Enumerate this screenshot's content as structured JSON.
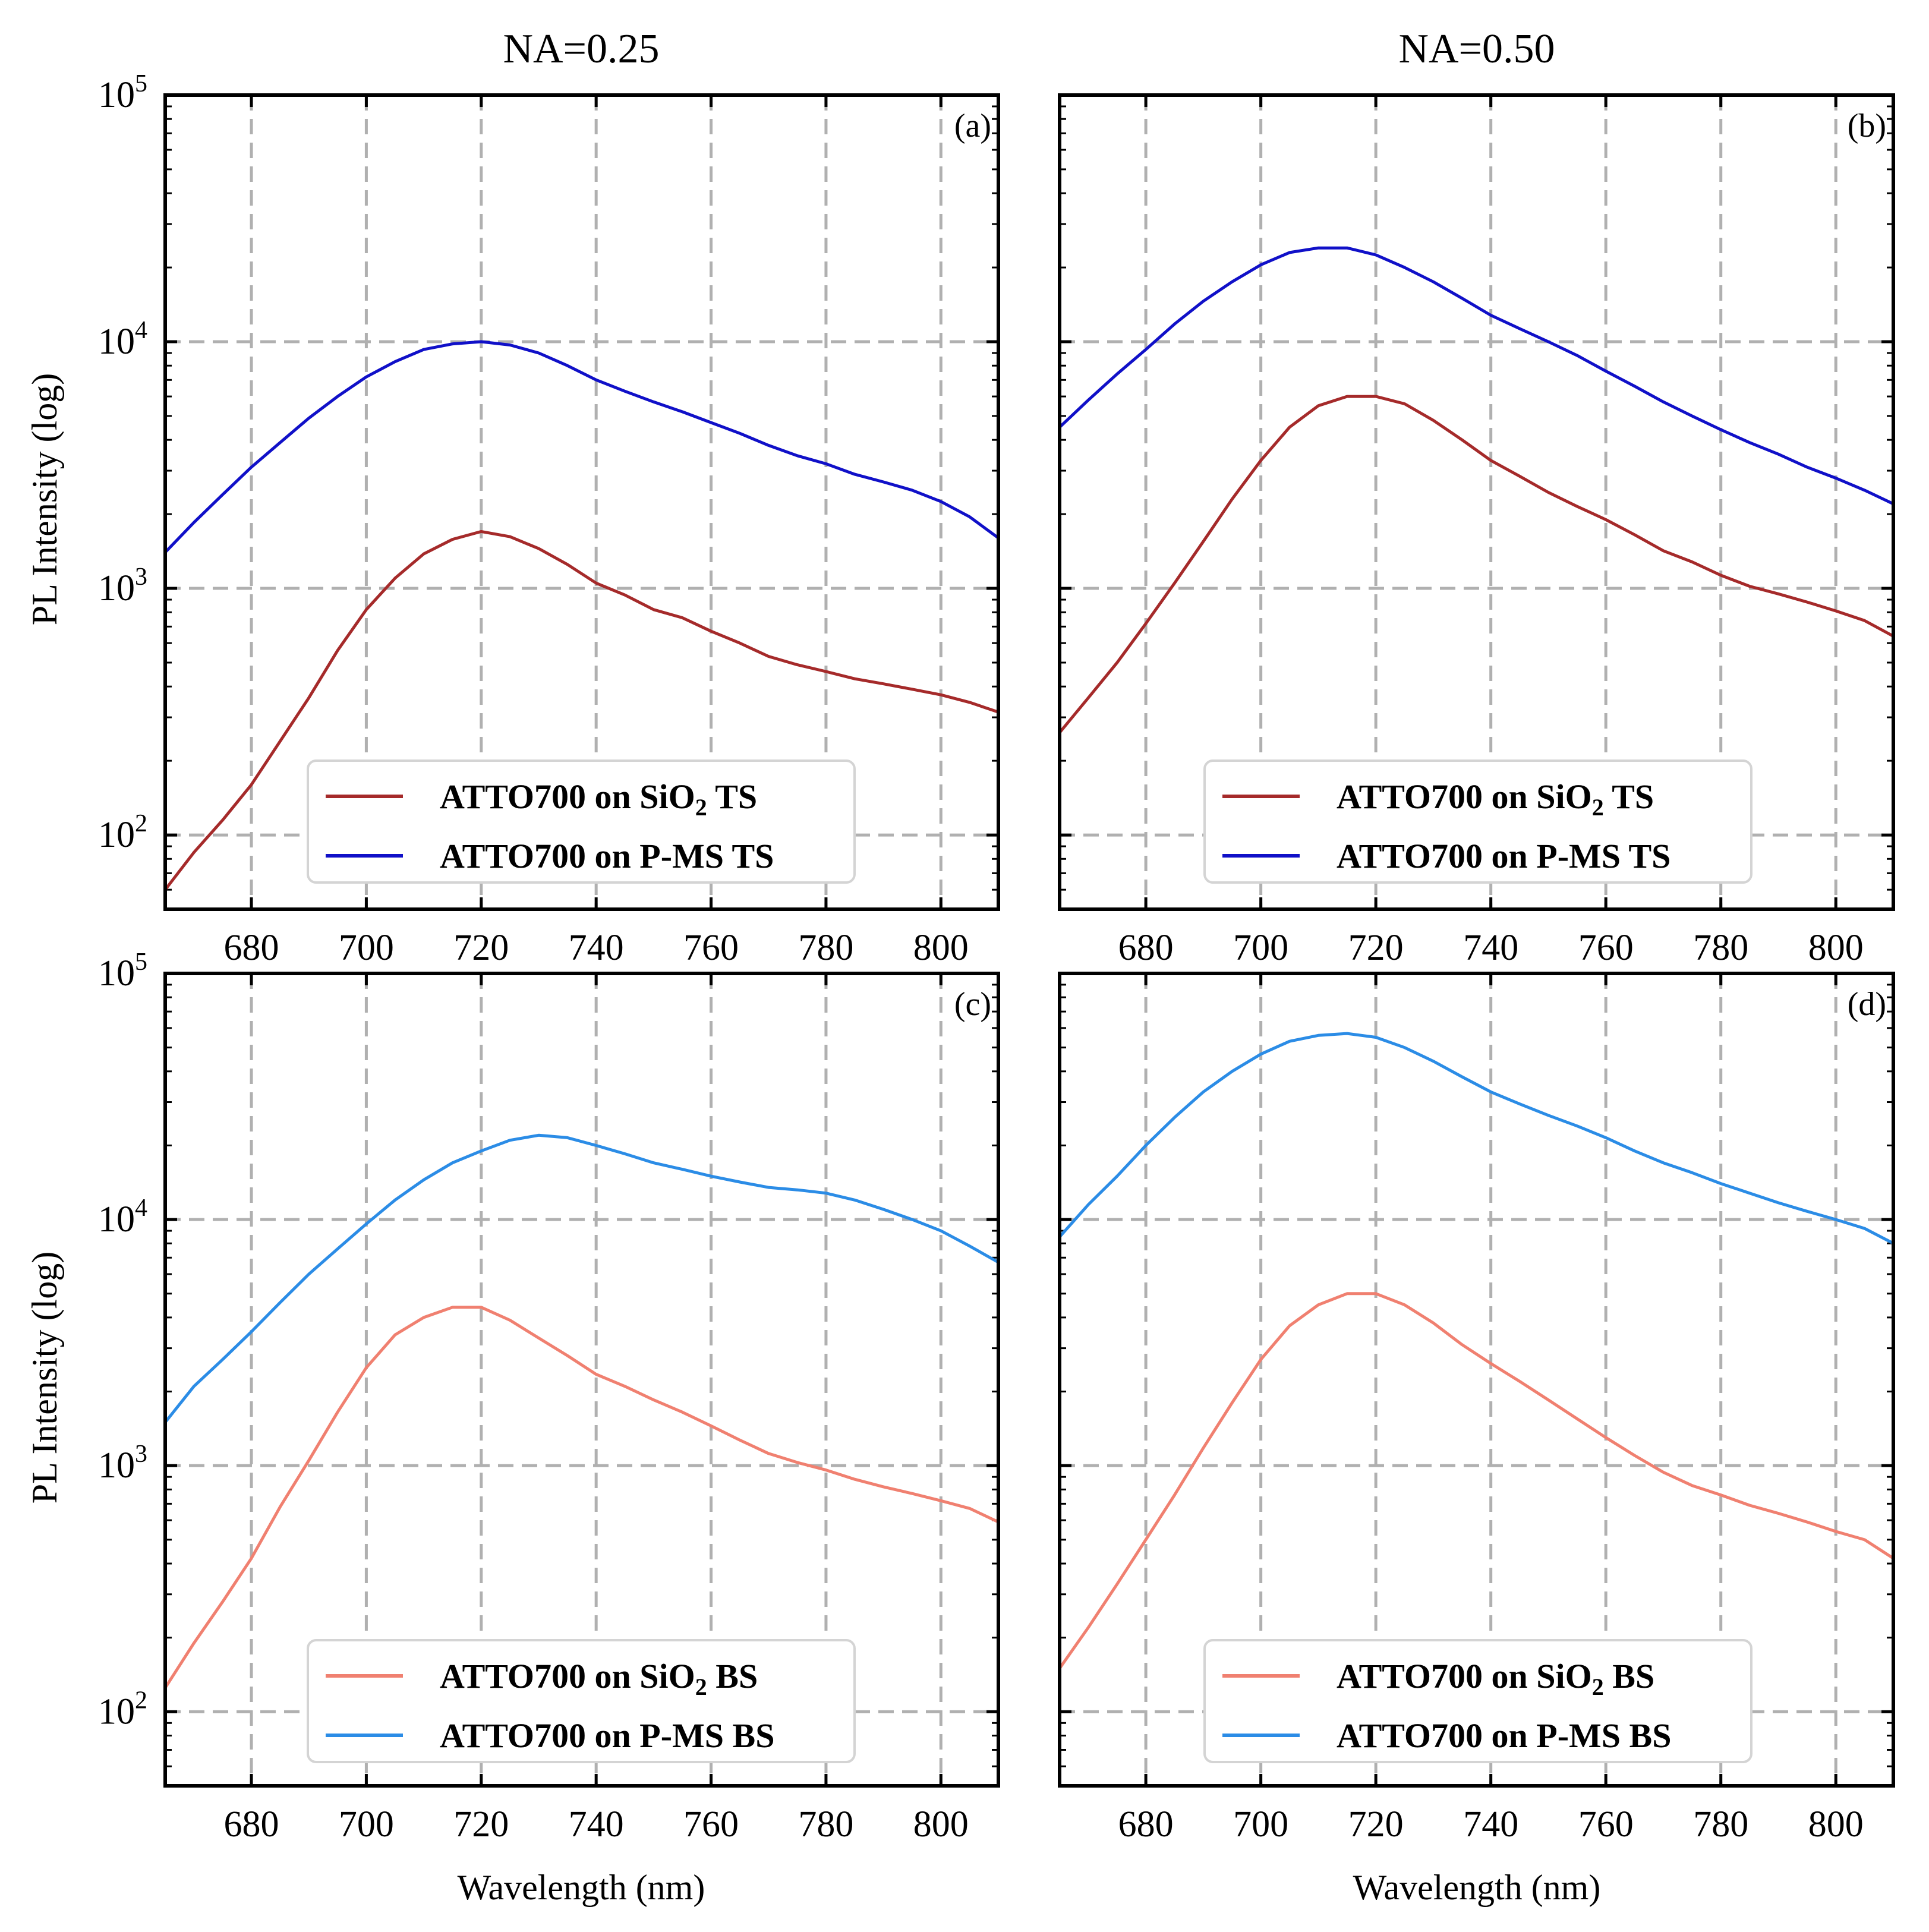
{
  "figure": {
    "col_titles": [
      "NA=0.25",
      "NA=0.50"
    ],
    "ylabel": "PL Intensity (log)",
    "xlabel": "Wavelength (nm)"
  },
  "chart_data": [
    {
      "panel": "(a)",
      "type": "line",
      "title": "NA=0.25",
      "xlabel": "",
      "ylabel": "PL Intensity (log)",
      "yscale": "log",
      "xlim": [
        665,
        810
      ],
      "ylim": [
        50,
        100000
      ],
      "xticks": [
        680,
        700,
        720,
        740,
        760,
        780,
        800
      ],
      "yticks": [
        {
          "base": "10",
          "exp": "2",
          "value": 100
        },
        {
          "base": "10",
          "exp": "3",
          "value": 1000
        },
        {
          "base": "10",
          "exp": "4",
          "value": 10000
        },
        {
          "base": "10",
          "exp": "5",
          "value": 100000
        }
      ],
      "grid": true,
      "legend_position": "lower-center",
      "series": [
        {
          "name": "ATTO700 on SiO2 TS",
          "label_parts": [
            "ATTO700 on SiO",
            "2",
            " TS"
          ],
          "color": "#a52a2a",
          "x": [
            665,
            670,
            675,
            680,
            685,
            690,
            695,
            700,
            705,
            710,
            715,
            720,
            725,
            730,
            735,
            740,
            745,
            750,
            755,
            760,
            765,
            770,
            775,
            780,
            785,
            790,
            795,
            800,
            805,
            810
          ],
          "y": [
            60,
            85,
            115,
            160,
            240,
            360,
            560,
            820,
            1100,
            1380,
            1580,
            1700,
            1620,
            1450,
            1250,
            1050,
            940,
            820,
            760,
            670,
            600,
            530,
            490,
            460,
            430,
            410,
            390,
            370,
            345,
            315
          ]
        },
        {
          "name": "ATTO700 on P-MS TS",
          "label_parts": [
            "ATTO700 on P-MS TS"
          ],
          "color": "#1010c8",
          "x": [
            665,
            670,
            675,
            680,
            685,
            690,
            695,
            700,
            705,
            710,
            715,
            720,
            725,
            730,
            735,
            740,
            745,
            750,
            755,
            760,
            765,
            770,
            775,
            780,
            785,
            790,
            795,
            800,
            805,
            810
          ],
          "y": [
            1400,
            1850,
            2400,
            3100,
            3900,
            4900,
            6000,
            7200,
            8300,
            9300,
            9800,
            10000,
            9700,
            9000,
            8000,
            7000,
            6300,
            5700,
            5200,
            4700,
            4250,
            3800,
            3450,
            3200,
            2900,
            2700,
            2500,
            2250,
            1950,
            1600
          ]
        }
      ]
    },
    {
      "panel": "(b)",
      "type": "line",
      "title": "NA=0.50",
      "xlabel": "",
      "ylabel": "",
      "yscale": "log",
      "xlim": [
        665,
        810
      ],
      "ylim": [
        50,
        100000
      ],
      "xticks": [
        680,
        700,
        720,
        740,
        760,
        780,
        800
      ],
      "yticks": [],
      "grid": true,
      "legend_position": "lower-center",
      "series": [
        {
          "name": "ATTO700 on SiO2 TS",
          "label_parts": [
            "ATTO700 on SiO",
            "2",
            " TS"
          ],
          "color": "#a52a2a",
          "x": [
            665,
            670,
            675,
            680,
            685,
            690,
            695,
            700,
            705,
            710,
            715,
            720,
            725,
            730,
            735,
            740,
            745,
            750,
            755,
            760,
            765,
            770,
            775,
            780,
            785,
            790,
            795,
            800,
            805,
            810
          ],
          "y": [
            260,
            360,
            500,
            720,
            1050,
            1550,
            2300,
            3300,
            4500,
            5500,
            6000,
            6000,
            5600,
            4800,
            4000,
            3300,
            2850,
            2450,
            2150,
            1900,
            1650,
            1420,
            1280,
            1130,
            1020,
            950,
            880,
            810,
            740,
            640
          ]
        },
        {
          "name": "ATTO700 on P-MS TS",
          "label_parts": [
            "ATTO700 on P-MS TS"
          ],
          "color": "#1010c8",
          "x": [
            665,
            670,
            675,
            680,
            685,
            690,
            695,
            700,
            705,
            710,
            715,
            720,
            725,
            730,
            735,
            740,
            745,
            750,
            755,
            760,
            765,
            770,
            775,
            780,
            785,
            790,
            795,
            800,
            805,
            810
          ],
          "y": [
            4500,
            5800,
            7400,
            9300,
            11800,
            14600,
            17500,
            20500,
            23000,
            24000,
            24000,
            22500,
            20000,
            17500,
            15000,
            12800,
            11300,
            10000,
            8800,
            7600,
            6600,
            5700,
            5000,
            4400,
            3900,
            3500,
            3100,
            2800,
            2500,
            2200
          ]
        }
      ]
    },
    {
      "panel": "(c)",
      "type": "line",
      "title": "",
      "xlabel": "Wavelength (nm)",
      "ylabel": "PL Intensity (log)",
      "yscale": "log",
      "xlim": [
        665,
        810
      ],
      "ylim": [
        50,
        100000
      ],
      "xticks": [
        680,
        700,
        720,
        740,
        760,
        780,
        800
      ],
      "yticks": [
        {
          "base": "10",
          "exp": "2",
          "value": 100
        },
        {
          "base": "10",
          "exp": "3",
          "value": 1000
        },
        {
          "base": "10",
          "exp": "4",
          "value": 10000
        },
        {
          "base": "10",
          "exp": "5",
          "value": 100000
        }
      ],
      "grid": true,
      "legend_position": "lower-center",
      "series": [
        {
          "name": "ATTO700 on SiO2 BS",
          "label_parts": [
            "ATTO700 on SiO",
            "2",
            " BS"
          ],
          "color": "#f08070",
          "x": [
            665,
            670,
            675,
            680,
            685,
            690,
            695,
            700,
            705,
            710,
            715,
            720,
            725,
            730,
            735,
            740,
            745,
            750,
            755,
            760,
            765,
            770,
            775,
            780,
            785,
            790,
            795,
            800,
            805,
            810
          ],
          "y": [
            125,
            190,
            280,
            420,
            680,
            1050,
            1650,
            2500,
            3400,
            4000,
            4400,
            4400,
            3900,
            3300,
            2800,
            2350,
            2100,
            1850,
            1650,
            1450,
            1270,
            1120,
            1030,
            960,
            880,
            820,
            770,
            720,
            670,
            590
          ]
        },
        {
          "name": "ATTO700 on P-MS BS",
          "label_parts": [
            "ATTO700 on P-MS BS"
          ],
          "color": "#2b8ce6",
          "x": [
            665,
            670,
            675,
            680,
            685,
            690,
            695,
            700,
            705,
            710,
            715,
            720,
            725,
            730,
            735,
            740,
            745,
            750,
            755,
            760,
            765,
            770,
            775,
            780,
            785,
            790,
            795,
            800,
            805,
            810
          ],
          "y": [
            1500,
            2100,
            2700,
            3500,
            4600,
            6000,
            7600,
            9600,
            12000,
            14500,
            17000,
            19000,
            21000,
            22000,
            21500,
            20000,
            18500,
            17000,
            16000,
            15000,
            14200,
            13500,
            13200,
            12800,
            12000,
            11000,
            10000,
            9000,
            7800,
            6700
          ]
        }
      ]
    },
    {
      "panel": "(d)",
      "type": "line",
      "title": "",
      "xlabel": "Wavelength (nm)",
      "ylabel": "",
      "yscale": "log",
      "xlim": [
        665,
        810
      ],
      "ylim": [
        50,
        100000
      ],
      "xticks": [
        680,
        700,
        720,
        740,
        760,
        780,
        800
      ],
      "yticks": [],
      "grid": true,
      "legend_position": "lower-center",
      "series": [
        {
          "name": "ATTO700 on SiO2 BS",
          "label_parts": [
            "ATTO700 on SiO",
            "2",
            " BS"
          ],
          "color": "#f08070",
          "x": [
            665,
            670,
            675,
            680,
            685,
            690,
            695,
            700,
            705,
            710,
            715,
            720,
            725,
            730,
            735,
            740,
            745,
            750,
            755,
            760,
            765,
            770,
            775,
            780,
            785,
            790,
            795,
            800,
            805,
            810
          ],
          "y": [
            150,
            220,
            330,
            500,
            760,
            1180,
            1800,
            2700,
            3700,
            4500,
            5000,
            5000,
            4500,
            3800,
            3100,
            2600,
            2200,
            1850,
            1550,
            1300,
            1100,
            940,
            830,
            760,
            690,
            640,
            590,
            540,
            500,
            420
          ]
        },
        {
          "name": "ATTO700 on P-MS BS",
          "label_parts": [
            "ATTO700 on P-MS BS"
          ],
          "color": "#2b8ce6",
          "x": [
            665,
            670,
            675,
            680,
            685,
            690,
            695,
            700,
            705,
            710,
            715,
            720,
            725,
            730,
            735,
            740,
            745,
            750,
            755,
            760,
            765,
            770,
            775,
            780,
            785,
            790,
            795,
            800,
            805,
            810
          ],
          "y": [
            8500,
            11500,
            15000,
            20000,
            26000,
            33000,
            40000,
            47000,
            53000,
            56000,
            57000,
            55000,
            50000,
            44000,
            38000,
            33000,
            29500,
            26500,
            24000,
            21500,
            19000,
            17000,
            15500,
            14000,
            12800,
            11700,
            10800,
            10000,
            9200,
            8000
          ]
        }
      ]
    }
  ]
}
